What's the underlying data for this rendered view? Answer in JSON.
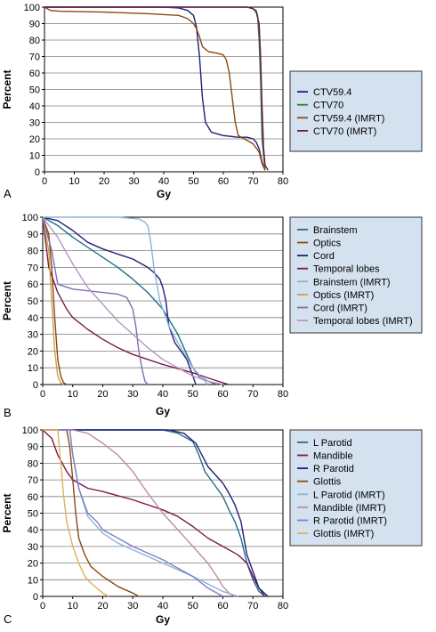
{
  "colors": {
    "legend_bg": "#d4e1ef",
    "legend_border": "#333333",
    "grid": "#7f7f7f",
    "axis": "#000000"
  },
  "chart_data": [
    {
      "panel_label": "A",
      "type": "line",
      "xlabel": "Gy",
      "ylabel": "Percent",
      "xlim": [
        0,
        80
      ],
      "ylim": [
        0,
        100
      ],
      "xticks": [
        0,
        10,
        20,
        30,
        40,
        50,
        60,
        70,
        80
      ],
      "yticks": [
        0,
        10,
        20,
        30,
        40,
        50,
        60,
        70,
        80,
        90,
        100
      ],
      "grid": "horizontal",
      "legend_position": "right",
      "series": [
        {
          "name": "CTV59.4",
          "color": "#1f1f7a",
          "x": [
            0,
            40,
            45,
            48,
            50,
            51,
            52,
            53,
            54,
            56,
            60,
            65,
            68,
            70,
            71,
            72,
            73,
            74
          ],
          "y": [
            100,
            100,
            99.5,
            98,
            95,
            88,
            70,
            45,
            30,
            24,
            22,
            21,
            21,
            20,
            18,
            14,
            6,
            1
          ]
        },
        {
          "name": "CTV70",
          "color": "#2e7d32",
          "x": [
            0,
            68,
            70,
            71,
            71.5,
            72,
            72.5,
            73,
            74
          ],
          "y": [
            100,
            100,
            99,
            98,
            95,
            80,
            55,
            20,
            1
          ]
        },
        {
          "name": "CTV59.4 (IMRT)",
          "color": "#8b4a12",
          "x": [
            0,
            2,
            5,
            20,
            35,
            45,
            48,
            50,
            51,
            52,
            53,
            55,
            58,
            60,
            61,
            62,
            63,
            64,
            65,
            67,
            70,
            72,
            73,
            74
          ],
          "y": [
            100,
            98,
            97.5,
            97,
            96,
            95,
            93,
            90,
            87,
            82,
            76,
            73,
            72,
            71,
            68,
            60,
            45,
            30,
            22,
            20,
            17,
            12,
            5,
            1
          ]
        },
        {
          "name": "CTV70 (IMRT)",
          "color": "#6b1a4a",
          "x": [
            0,
            68,
            70,
            71,
            72,
            72.5,
            73,
            73.5,
            74,
            75
          ],
          "y": [
            100,
            100,
            99,
            97,
            90,
            70,
            40,
            15,
            4,
            1
          ]
        }
      ]
    },
    {
      "panel_label": "B",
      "type": "line",
      "xlabel": "Gy",
      "ylabel": "Percent",
      "xlim": [
        0,
        80
      ],
      "ylim": [
        0,
        100
      ],
      "xticks": [
        0,
        10,
        20,
        30,
        40,
        50,
        60,
        70,
        80
      ],
      "yticks": [
        0,
        10,
        20,
        30,
        40,
        50,
        60,
        70,
        80,
        90,
        100
      ],
      "grid": "horizontal",
      "legend_position": "right",
      "series": [
        {
          "name": "Brainstem",
          "color": "#1f6f8b",
          "x": [
            0,
            5,
            10,
            15,
            20,
            25,
            30,
            35,
            40,
            45,
            48,
            50,
            52,
            55,
            58
          ],
          "y": [
            100,
            95,
            88,
            82,
            76,
            70,
            63,
            55,
            45,
            30,
            18,
            10,
            5,
            2,
            0
          ]
        },
        {
          "name": "Optics",
          "color": "#8b4a12",
          "x": [
            0,
            2,
            3,
            4,
            5,
            6,
            7,
            8
          ],
          "y": [
            100,
            90,
            70,
            40,
            15,
            5,
            1,
            0
          ]
        },
        {
          "name": "Cord",
          "color": "#1f1f7a",
          "x": [
            0,
            5,
            10,
            15,
            20,
            25,
            30,
            35,
            37,
            39,
            40,
            41,
            42,
            44,
            46,
            48,
            49,
            50,
            51
          ],
          "y": [
            100,
            98,
            92,
            85,
            81,
            78,
            75,
            70,
            67,
            63,
            58,
            50,
            35,
            25,
            20,
            15,
            10,
            5,
            0
          ]
        },
        {
          "name": "Temporal lobes",
          "color": "#7b1a4a",
          "x": [
            0,
            2,
            5,
            8,
            10,
            15,
            20,
            25,
            30,
            40,
            50,
            55,
            60,
            62
          ],
          "y": [
            100,
            70,
            55,
            45,
            40,
            33,
            27,
            22,
            18,
            12,
            7,
            4,
            1,
            0
          ]
        },
        {
          "name": "Brainstem (IMRT)",
          "color": "#8ab4d8",
          "x": [
            0,
            10,
            25,
            32,
            34,
            35,
            36,
            37,
            38,
            39,
            40,
            42,
            45,
            50,
            55
          ],
          "y": [
            100,
            100,
            100,
            99,
            97,
            95,
            85,
            70,
            60,
            50,
            45,
            35,
            25,
            10,
            0
          ]
        },
        {
          "name": "Optics (IMRT)",
          "color": "#c9a24a",
          "x": [
            0,
            2,
            3,
            4,
            5,
            6,
            7
          ],
          "y": [
            100,
            80,
            50,
            20,
            5,
            1,
            0
          ]
        },
        {
          "name": "Cord (IMRT)",
          "color": "#7f6fb0",
          "x": [
            0,
            3,
            5,
            10,
            15,
            20,
            25,
            28,
            30,
            31,
            32,
            33,
            34,
            35
          ],
          "y": [
            100,
            80,
            60,
            57,
            56,
            55,
            54,
            52,
            45,
            35,
            20,
            10,
            2,
            0
          ]
        },
        {
          "name": "Temporal lobes (IMRT)",
          "color": "#b894c4",
          "x": [
            0,
            5,
            10,
            15,
            20,
            25,
            30,
            35,
            40,
            45,
            50,
            55,
            60
          ],
          "y": [
            100,
            88,
            72,
            58,
            48,
            38,
            30,
            22,
            15,
            10,
            5,
            2,
            0
          ]
        }
      ]
    },
    {
      "panel_label": "C",
      "type": "line",
      "xlabel": "Gy",
      "ylabel": "Percent",
      "xlim": [
        0,
        80
      ],
      "ylim": [
        0,
        100
      ],
      "xticks": [
        0,
        10,
        20,
        30,
        40,
        50,
        60,
        70,
        80
      ],
      "yticks": [
        0,
        10,
        20,
        30,
        40,
        50,
        60,
        70,
        80,
        90,
        100
      ],
      "grid": "horizontal",
      "legend_position": "right",
      "series": [
        {
          "name": "L Parotid",
          "color": "#1f6f8b",
          "x": [
            0,
            40,
            45,
            50,
            52,
            54,
            56,
            58,
            60,
            62,
            64,
            66,
            68,
            70,
            72,
            74
          ],
          "y": [
            100,
            100,
            98,
            93,
            85,
            75,
            70,
            65,
            60,
            52,
            45,
            35,
            20,
            10,
            3,
            0
          ]
        },
        {
          "name": "Mandible",
          "color": "#7b1a4a",
          "x": [
            0,
            3,
            5,
            8,
            10,
            15,
            20,
            30,
            40,
            45,
            50,
            55,
            60,
            65,
            68,
            70,
            72,
            74
          ],
          "y": [
            100,
            95,
            85,
            75,
            70,
            65,
            63,
            58,
            52,
            48,
            42,
            35,
            30,
            25,
            20,
            12,
            5,
            0
          ]
        },
        {
          "name": "R Parotid",
          "color": "#1f1f7a",
          "x": [
            0,
            42,
            47,
            51,
            53,
            55,
            58,
            60,
            62,
            64,
            66,
            67,
            68,
            70,
            72,
            75
          ],
          "y": [
            100,
            100,
            98,
            92,
            85,
            78,
            72,
            68,
            62,
            55,
            45,
            35,
            25,
            15,
            5,
            0
          ]
        },
        {
          "name": "Glottis",
          "color": "#8b4a12",
          "x": [
            0,
            8,
            9,
            10,
            11,
            12,
            14,
            16,
            20,
            25,
            30,
            32
          ],
          "y": [
            100,
            100,
            90,
            70,
            50,
            35,
            25,
            18,
            12,
            6,
            2,
            0
          ]
        },
        {
          "name": "L Parotid (IMRT)",
          "color": "#8ab4d8",
          "x": [
            0,
            9,
            10,
            12,
            15,
            18,
            20,
            25,
            30,
            40,
            50,
            60,
            65
          ],
          "y": [
            100,
            100,
            85,
            65,
            48,
            42,
            38,
            32,
            28,
            20,
            12,
            3,
            0
          ]
        },
        {
          "name": "Mandible (IMRT)",
          "color": "#c08aa8",
          "x": [
            0,
            10,
            15,
            20,
            25,
            30,
            35,
            40,
            45,
            50,
            55,
            58,
            60,
            62,
            64
          ],
          "y": [
            100,
            100,
            98,
            92,
            85,
            75,
            62,
            50,
            40,
            30,
            20,
            12,
            6,
            2,
            0
          ]
        },
        {
          "name": "R Parotid (IMRT)",
          "color": "#7f7fc8",
          "x": [
            0,
            9,
            10,
            12,
            15,
            18,
            20,
            25,
            30,
            40,
            50,
            55,
            60
          ],
          "y": [
            100,
            100,
            85,
            65,
            50,
            45,
            40,
            35,
            30,
            22,
            12,
            5,
            0
          ]
        },
        {
          "name": "Glottis (IMRT)",
          "color": "#e0b060",
          "x": [
            0,
            5,
            6,
            7,
            8,
            10,
            12,
            14,
            16,
            18,
            20,
            22
          ],
          "y": [
            100,
            100,
            80,
            60,
            45,
            30,
            20,
            12,
            8,
            5,
            2,
            0
          ]
        }
      ]
    }
  ]
}
